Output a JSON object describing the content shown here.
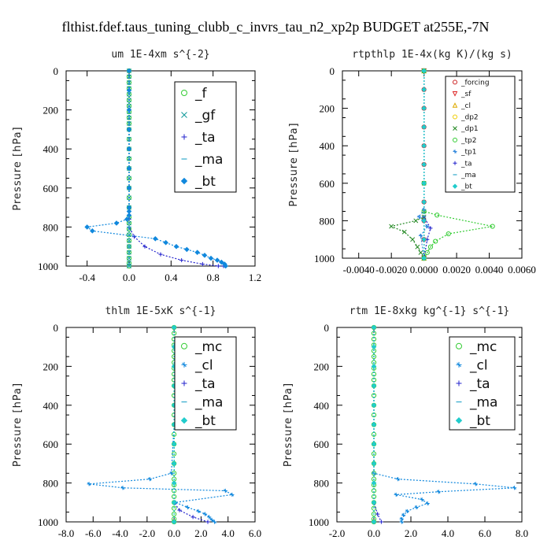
{
  "figure": {
    "title": "flthist.fdef.taus_tuning_clubb_c_invrs_tau_n2_xp2p  BUDGET at255E,-7N"
  },
  "chart_data": [
    {
      "type": "line",
      "title": "um  1E-4xm s^{-2}",
      "ylabel": "Pressure [hPa]",
      "xlabel": "",
      "xlim": [
        -0.6,
        1.2
      ],
      "ylim": [
        1000,
        0
      ],
      "xticks": [
        "-0.4",
        "0.0",
        "0.4",
        "0.8",
        "1.2"
      ],
      "xtick_values": [
        -0.4,
        0.0,
        0.4,
        0.8,
        1.2
      ],
      "yticks": [
        "0",
        "200",
        "400",
        "600",
        "800",
        "1000"
      ],
      "ytick_values": [
        0,
        200,
        400,
        600,
        800,
        1000
      ],
      "legend_position": "top-right",
      "series": [
        {
          "name": "_f",
          "color": "#33cc33",
          "marker": "circle",
          "x": [
            0,
            0,
            0,
            0,
            0,
            0,
            0,
            0,
            0,
            0,
            0,
            0,
            0,
            0,
            0,
            0,
            0,
            0,
            0,
            0,
            0,
            0,
            0,
            0,
            0,
            0,
            0,
            0,
            0
          ],
          "y": [
            0,
            30,
            60,
            90,
            120,
            150,
            180,
            210,
            240,
            270,
            300,
            350,
            400,
            450,
            500,
            550,
            600,
            650,
            700,
            750,
            780,
            810,
            840,
            870,
            900,
            930,
            960,
            985,
            1000
          ]
        },
        {
          "name": "_gf",
          "color": "#119999",
          "marker": "x",
          "x": [
            0,
            0,
            0,
            0,
            0,
            0,
            0,
            0,
            0,
            0,
            0,
            0,
            0,
            0,
            0,
            0,
            0,
            0,
            0,
            0,
            0,
            0,
            0,
            0,
            0,
            0,
            0,
            0,
            0
          ],
          "y": [
            0,
            30,
            60,
            90,
            120,
            150,
            180,
            210,
            240,
            270,
            300,
            350,
            400,
            450,
            500,
            550,
            600,
            650,
            700,
            750,
            780,
            810,
            840,
            870,
            900,
            930,
            960,
            985,
            1000
          ]
        },
        {
          "name": "_ta",
          "color": "#2222cc",
          "marker": "plus",
          "x": [
            0,
            0,
            0,
            0,
            0,
            0,
            0,
            0.05,
            0.15,
            0.3,
            0.5,
            0.7,
            0.85,
            0.9
          ],
          "y": [
            0,
            200,
            400,
            600,
            700,
            760,
            800,
            850,
            900,
            940,
            970,
            990,
            1000,
            1000
          ]
        },
        {
          "name": "_ma",
          "color": "#33aacc",
          "marker": "dash",
          "x": [
            0,
            0,
            0,
            0,
            0,
            0,
            0,
            0,
            0,
            0,
            0
          ],
          "y": [
            0,
            100,
            200,
            300,
            400,
            500,
            600,
            700,
            800,
            900,
            1000
          ]
        },
        {
          "name": "_bt",
          "color": "#1188dd",
          "marker": "diamond",
          "x": [
            0,
            0,
            0,
            0,
            0,
            0,
            0,
            0,
            0,
            0,
            -0.02,
            -0.12,
            -0.4,
            -0.35,
            0.25,
            0.35,
            0.45,
            0.55,
            0.65,
            0.72,
            0.78,
            0.84,
            0.88,
            0.91,
            0.92
          ],
          "y": [
            0,
            100,
            200,
            300,
            400,
            500,
            600,
            700,
            720,
            740,
            760,
            780,
            800,
            820,
            860,
            880,
            900,
            915,
            930,
            945,
            960,
            970,
            980,
            990,
            1000
          ]
        }
      ]
    },
    {
      "type": "line",
      "title": "rtpthlp  1E-4x(kg K)/(kg s)",
      "ylabel": "Pressure [hPa]",
      "xlabel": "",
      "xlim": [
        -0.005,
        0.006
      ],
      "ylim": [
        1000,
        0
      ],
      "xticks": [
        "-0.0040",
        "-0.0020",
        "0.0000",
        "0.0020",
        "0.0040",
        "0.0060"
      ],
      "xtick_values": [
        -0.004,
        -0.002,
        0.0,
        0.002,
        0.004,
        0.006
      ],
      "yticks": [
        "0",
        "200",
        "400",
        "600",
        "800",
        "1000"
      ],
      "ytick_values": [
        0,
        200,
        400,
        600,
        800,
        1000
      ],
      "legend_position": "top-right",
      "series": [
        {
          "name": "_forcing",
          "color": "#cc2222",
          "marker": "circle",
          "x": [
            0,
            0,
            0,
            0,
            0,
            0,
            0,
            0,
            0,
            0,
            0
          ],
          "y": [
            0,
            100,
            200,
            300,
            400,
            500,
            600,
            700,
            800,
            900,
            1000
          ]
        },
        {
          "name": "_sf",
          "color": "#dd2222",
          "marker": "triangle-down",
          "x": [
            0,
            0
          ],
          "y": [
            0,
            1000
          ]
        },
        {
          "name": "_cl",
          "color": "#ddaa00",
          "marker": "triangle",
          "x": [
            0,
            0
          ],
          "y": [
            0,
            1000
          ]
        },
        {
          "name": "_dp2",
          "color": "#eecc00",
          "marker": "circle",
          "x": [
            0,
            0
          ],
          "y": [
            0,
            1000
          ]
        },
        {
          "name": "_dp1",
          "color": "#228822",
          "marker": "x",
          "x": [
            0,
            0,
            0,
            0,
            -0.0005,
            -0.002,
            -0.0012,
            -0.0007,
            -0.0004,
            -0.0002,
            0
          ],
          "y": [
            0,
            600,
            750,
            780,
            800,
            830,
            860,
            900,
            940,
            970,
            1000
          ]
        },
        {
          "name": "_tp2",
          "color": "#33cc33",
          "marker": "circle",
          "x": [
            0,
            0,
            0,
            0.0008,
            0.0042,
            0.0015,
            0.0007,
            0.0004,
            0.0002,
            0
          ],
          "y": [
            0,
            600,
            750,
            770,
            830,
            870,
            910,
            940,
            970,
            1000
          ]
        },
        {
          "name": "_tp1",
          "color": "#3388dd",
          "marker": "star",
          "x": [
            0,
            0,
            -0.0003,
            0.0002,
            -0.0002,
            0
          ],
          "y": [
            0,
            740,
            780,
            830,
            880,
            1000
          ]
        },
        {
          "name": "_ta",
          "color": "#2222cc",
          "marker": "plus",
          "x": [
            0,
            0,
            0.0004,
            0.0002,
            0
          ],
          "y": [
            0,
            780,
            840,
            900,
            1000
          ]
        },
        {
          "name": "_ma",
          "color": "#33aacc",
          "marker": "dash",
          "x": [
            0,
            0
          ],
          "y": [
            0,
            1000
          ]
        },
        {
          "name": "_bt",
          "color": "#22cccc",
          "marker": "diamond",
          "x": [
            0,
            0,
            0,
            0,
            0,
            0,
            0,
            0,
            0,
            0,
            0
          ],
          "y": [
            0,
            100,
            200,
            300,
            400,
            500,
            600,
            700,
            800,
            900,
            1000
          ]
        }
      ]
    },
    {
      "type": "line",
      "title": "thlm  1E-5xK s^{-1}",
      "ylabel": "Pressure [hPa]",
      "xlabel": "",
      "xlim": [
        -8.0,
        6.0
      ],
      "ylim": [
        1000,
        0
      ],
      "xticks": [
        "-8.0",
        "-6.0",
        "-4.0",
        "-2.0",
        "0.0",
        "2.0",
        "4.0",
        "6.0"
      ],
      "xtick_values": [
        -8,
        -6,
        -4,
        -2,
        0,
        2,
        4,
        6
      ],
      "yticks": [
        "0",
        "200",
        "400",
        "600",
        "800",
        "1000"
      ],
      "ytick_values": [
        0,
        200,
        400,
        600,
        800,
        1000
      ],
      "legend_position": "top-right",
      "series": [
        {
          "name": "_mc",
          "color": "#33cc33",
          "marker": "circle",
          "x": [
            0,
            0,
            0,
            0,
            0,
            0,
            0,
            0,
            0,
            0,
            0,
            0,
            0,
            0,
            0,
            0,
            0,
            0,
            0,
            0,
            0,
            0,
            0,
            0,
            0,
            0,
            0,
            0,
            0
          ],
          "y": [
            0,
            30,
            60,
            90,
            120,
            150,
            180,
            210,
            240,
            270,
            300,
            350,
            400,
            450,
            500,
            550,
            600,
            650,
            700,
            750,
            780,
            810,
            840,
            870,
            900,
            930,
            960,
            985,
            1000
          ]
        },
        {
          "name": "_cl",
          "color": "#1188dd",
          "marker": "star",
          "x": [
            0,
            0,
            0,
            -0.2,
            -1.8,
            -6.3,
            -3.8,
            3.8,
            4.3,
            0.1,
            1.0,
            1.8,
            2.3,
            2.6,
            2.8,
            3.0
          ],
          "y": [
            0,
            200,
            500,
            750,
            780,
            805,
            825,
            840,
            860,
            900,
            925,
            945,
            960,
            975,
            990,
            1000
          ]
        },
        {
          "name": "_ta",
          "color": "#2222cc",
          "marker": "plus",
          "x": [
            0,
            0,
            0,
            0.4,
            1.4,
            2.5
          ],
          "y": [
            0,
            600,
            900,
            940,
            975,
            1000
          ]
        },
        {
          "name": "_ma",
          "color": "#33aacc",
          "marker": "dash",
          "x": [
            0,
            0
          ],
          "y": [
            0,
            1000
          ]
        },
        {
          "name": "_bt",
          "color": "#22cccc",
          "marker": "diamond",
          "x": [
            0,
            0,
            0,
            0,
            0,
            0,
            0,
            0,
            0,
            0,
            0
          ],
          "y": [
            0,
            100,
            200,
            300,
            400,
            500,
            600,
            700,
            800,
            900,
            1000
          ]
        }
      ]
    },
    {
      "type": "line",
      "title": "rtm  1E-8xkg kg^{-1} s^{-1}",
      "ylabel": "Pressure [hPa]",
      "xlabel": "",
      "xlim": [
        -2.0,
        8.0
      ],
      "ylim": [
        1000,
        0
      ],
      "xticks": [
        "-2.0",
        "0.0",
        "2.0",
        "4.0",
        "6.0",
        "8.0"
      ],
      "xtick_values": [
        -2,
        0,
        2,
        4,
        6,
        8
      ],
      "yticks": [
        "0",
        "200",
        "400",
        "600",
        "800",
        "1000"
      ],
      "ytick_values": [
        0,
        200,
        400,
        600,
        800,
        1000
      ],
      "legend_position": "top-right",
      "series": [
        {
          "name": "_mc",
          "color": "#33cc33",
          "marker": "circle",
          "x": [
            0,
            0,
            0,
            0,
            0,
            0,
            0,
            0,
            0,
            0,
            0,
            0,
            0,
            0,
            0,
            0,
            0,
            0,
            0,
            0,
            0,
            0,
            0,
            0,
            0,
            0,
            0,
            0,
            0
          ],
          "y": [
            0,
            30,
            60,
            90,
            120,
            150,
            180,
            210,
            240,
            270,
            300,
            350,
            400,
            450,
            500,
            550,
            600,
            650,
            700,
            750,
            780,
            810,
            840,
            870,
            900,
            930,
            960,
            985,
            1000
          ]
        },
        {
          "name": "_cl",
          "color": "#1188dd",
          "marker": "star",
          "x": [
            0,
            0,
            0,
            1.3,
            5.5,
            7.6,
            3.5,
            1.2,
            2.6,
            2.9,
            2.3,
            1.8,
            1.6,
            1.5,
            1.5
          ],
          "y": [
            0,
            500,
            750,
            780,
            805,
            825,
            845,
            860,
            885,
            905,
            925,
            945,
            965,
            985,
            1000
          ]
        },
        {
          "name": "_ta",
          "color": "#2222cc",
          "marker": "plus",
          "x": [
            0,
            0,
            0,
            0.2,
            0.4
          ],
          "y": [
            0,
            600,
            900,
            960,
            1000
          ]
        },
        {
          "name": "_ma",
          "color": "#33aacc",
          "marker": "dash",
          "x": [
            0,
            0
          ],
          "y": [
            0,
            1000
          ]
        },
        {
          "name": "_bt",
          "color": "#22cccc",
          "marker": "diamond",
          "x": [
            0,
            0,
            0,
            0,
            0,
            0,
            0,
            0,
            0,
            0,
            0
          ],
          "y": [
            0,
            100,
            200,
            300,
            400,
            500,
            600,
            700,
            800,
            900,
            1000
          ]
        }
      ]
    }
  ]
}
